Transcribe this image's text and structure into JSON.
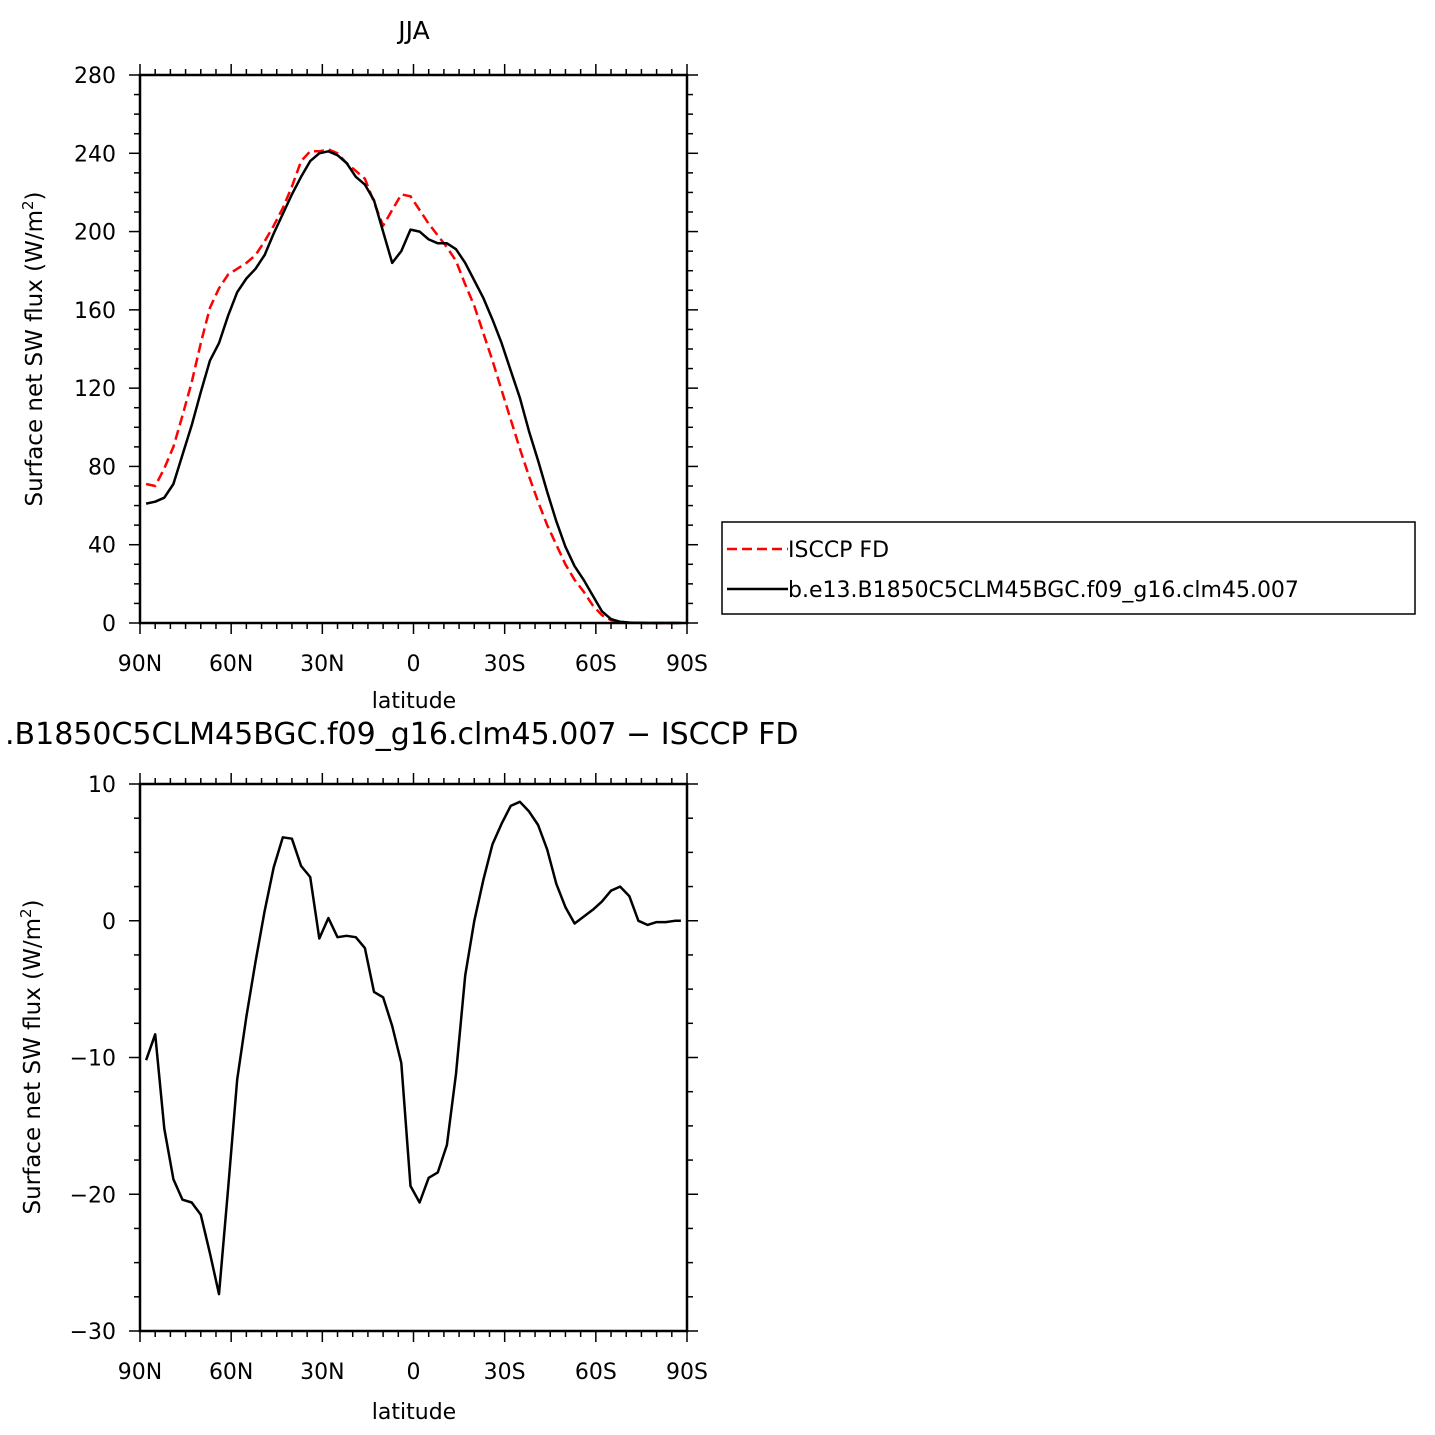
{
  "chart_data": [
    {
      "type": "line",
      "title": "JJA",
      "xlabel": "latitude",
      "ylabel_main": "Surface net SW flux (W/m",
      "ylabel_sup": "2",
      "ylabel_tail": ")",
      "xlim": [
        90,
        -90
      ],
      "ylim": [
        0,
        280
      ],
      "xticks": [
        {
          "value": 90,
          "label": "90N"
        },
        {
          "value": 60,
          "label": "60N"
        },
        {
          "value": 30,
          "label": "30N"
        },
        {
          "value": 0,
          "label": "0"
        },
        {
          "value": -30,
          "label": "30S"
        },
        {
          "value": -60,
          "label": "60S"
        },
        {
          "value": -90,
          "label": "90S"
        }
      ],
      "yticks": [
        {
          "value": 0,
          "label": "0"
        },
        {
          "value": 40,
          "label": "40"
        },
        {
          "value": 80,
          "label": "80"
        },
        {
          "value": 120,
          "label": "120"
        },
        {
          "value": 160,
          "label": "160"
        },
        {
          "value": 200,
          "label": "200"
        },
        {
          "value": 240,
          "label": "240"
        },
        {
          "value": 280,
          "label": "280"
        }
      ],
      "legend_position": "right",
      "series": [
        {
          "name": "ISCCP FD",
          "color": "#ff0000",
          "dash": true,
          "x": [
            88,
            85,
            82,
            79,
            76,
            73,
            70,
            67,
            64,
            61,
            58,
            55,
            52,
            49,
            46,
            43,
            40,
            37,
            34,
            31,
            28,
            25,
            22,
            19,
            16,
            13,
            10,
            7,
            4,
            1,
            -2,
            -5,
            -8,
            -11,
            -14,
            -17,
            -20,
            -23,
            -26,
            -29,
            -32,
            -35,
            -38,
            -41,
            -44,
            -47,
            -50,
            -53,
            -56,
            -59,
            -62,
            -65,
            -68,
            -71,
            -74,
            -77,
            -80,
            -83,
            -86,
            -88
          ],
          "y": [
            71,
            70,
            79,
            90,
            106,
            123,
            143,
            161,
            171,
            178,
            181,
            184,
            188,
            195,
            203,
            212,
            223,
            236,
            241,
            241,
            242,
            240,
            235,
            231,
            227,
            215,
            203,
            211,
            219,
            218,
            211,
            204,
            198,
            192,
            185,
            173,
            162,
            148,
            134,
            119,
            104,
            89,
            75,
            62,
            50,
            40,
            30,
            22,
            16,
            9,
            4,
            1.5,
            0.6,
            0.2,
            0.1,
            0,
            0,
            0,
            0,
            0
          ]
        },
        {
          "name": "b.e13.B1850C5CLM45BGC.f09_g16.clm45.007",
          "color": "#000000",
          "dash": false,
          "x": [
            88,
            85,
            82,
            79,
            76,
            73,
            70,
            67,
            64,
            61,
            58,
            55,
            52,
            49,
            46,
            43,
            40,
            37,
            34,
            31,
            28,
            25,
            22,
            19,
            16,
            13,
            10,
            7,
            4,
            1,
            -2,
            -5,
            -8,
            -11,
            -14,
            -17,
            -20,
            -23,
            -26,
            -29,
            -32,
            -35,
            -38,
            -41,
            -44,
            -47,
            -50,
            -53,
            -56,
            -59,
            -62,
            -65,
            -68,
            -71,
            -74,
            -77,
            -80,
            -83,
            -86,
            -88
          ],
          "y": [
            61,
            62,
            64,
            71,
            86,
            101,
            118,
            134,
            143,
            157,
            169,
            176,
            181,
            188,
            199,
            209,
            219,
            228,
            236,
            240,
            241,
            239,
            235,
            228,
            224,
            216,
            200,
            184,
            190,
            201,
            200,
            196,
            194,
            194,
            191,
            184,
            175,
            166,
            155,
            143,
            129,
            115,
            98,
            83,
            67,
            52,
            39,
            29,
            22,
            14,
            6,
            2,
            0.6,
            0.2,
            0.1,
            0,
            0,
            0,
            0,
            0
          ]
        }
      ]
    },
    {
      "type": "line",
      "title": ".B1850C5CLM45BGC.f09_g16.clm45.007 − ISCCP FD",
      "xlabel": "latitude",
      "ylabel_main": "Surface net SW flux (W/m",
      "ylabel_sup": "2",
      "ylabel_tail": ")",
      "xlim": [
        90,
        -90
      ],
      "ylim": [
        -30,
        10
      ],
      "xticks": [
        {
          "value": 90,
          "label": "90N"
        },
        {
          "value": 60,
          "label": "60N"
        },
        {
          "value": 30,
          "label": "30N"
        },
        {
          "value": 0,
          "label": "0"
        },
        {
          "value": -30,
          "label": "30S"
        },
        {
          "value": -60,
          "label": "60S"
        },
        {
          "value": -90,
          "label": "90S"
        }
      ],
      "yticks": [
        {
          "value": -30,
          "label": "−30"
        },
        {
          "value": -20,
          "label": "−20"
        },
        {
          "value": -10,
          "label": "−10"
        },
        {
          "value": 0,
          "label": "0"
        },
        {
          "value": 10,
          "label": "10"
        }
      ],
      "series": [
        {
          "color": "#000000",
          "dash": false,
          "x": [
            88,
            85,
            82,
            79,
            76,
            73,
            70,
            67,
            64,
            61,
            58,
            55,
            52,
            49,
            46,
            43,
            40,
            37,
            34,
            31,
            28,
            25,
            22,
            19,
            16,
            13,
            10,
            7,
            4,
            1,
            -2,
            -5,
            -8,
            -11,
            -14,
            -17,
            -20,
            -23,
            -26,
            -29,
            -32,
            -35,
            -38,
            -41,
            -44,
            -47,
            -50,
            -53,
            -56,
            -59,
            -62,
            -65,
            -68,
            -71,
            -74,
            -77,
            -80,
            -83,
            -86,
            -88
          ],
          "y": [
            -10.2,
            -8.3,
            -15.2,
            -18.9,
            -20.4,
            -20.6,
            -21.5,
            -24.3,
            -27.3,
            -19.6,
            -11.6,
            -7.0,
            -3.0,
            0.7,
            3.9,
            6.1,
            6.0,
            4.0,
            3.2,
            -1.3,
            0.2,
            -1.2,
            -1.1,
            -1.2,
            -2.0,
            -5.2,
            -5.6,
            -7.7,
            -10.4,
            -19.4,
            -20.6,
            -18.8,
            -18.4,
            -16.4,
            -11.2,
            -4.0,
            0.0,
            3.0,
            5.6,
            7.1,
            8.4,
            8.7,
            8.0,
            7.0,
            5.2,
            2.7,
            1.0,
            -0.2,
            0.3,
            0.8,
            1.4,
            2.2,
            2.5,
            1.8,
            0.0,
            -0.3,
            -0.1,
            -0.1,
            0.0,
            0.0
          ]
        }
      ]
    }
  ]
}
